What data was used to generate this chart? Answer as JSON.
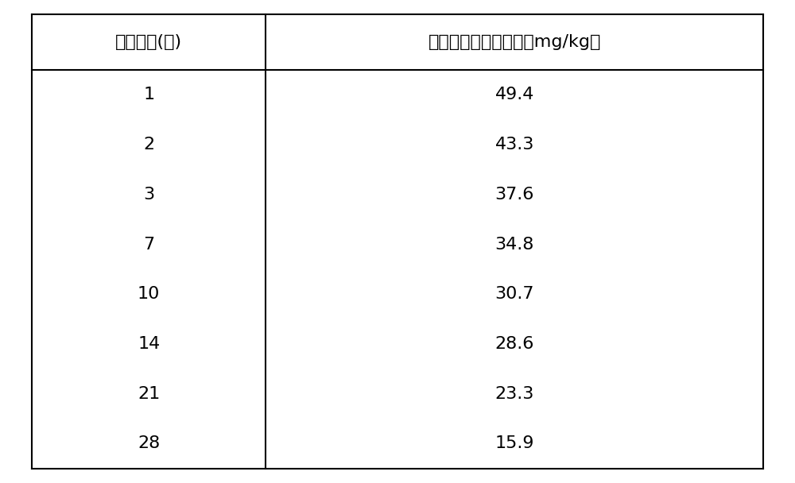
{
  "col1_header": "降解时间(天)",
  "col2_header": "高效氯氰菊酯残留量（mg/kg）",
  "rows": [
    [
      "1",
      "49.4"
    ],
    [
      "2",
      "43.3"
    ],
    [
      "3",
      "37.6"
    ],
    [
      "7",
      "34.8"
    ],
    [
      "10",
      "30.7"
    ],
    [
      "14",
      "28.6"
    ],
    [
      "21",
      "23.3"
    ],
    [
      "28",
      "15.9"
    ]
  ],
  "bg_color": "#ffffff",
  "text_color": "#000000",
  "header_fontsize": 16,
  "cell_fontsize": 16,
  "col_split": 0.32,
  "figsize": [
    10.0,
    6.08
  ],
  "dpi": 100
}
